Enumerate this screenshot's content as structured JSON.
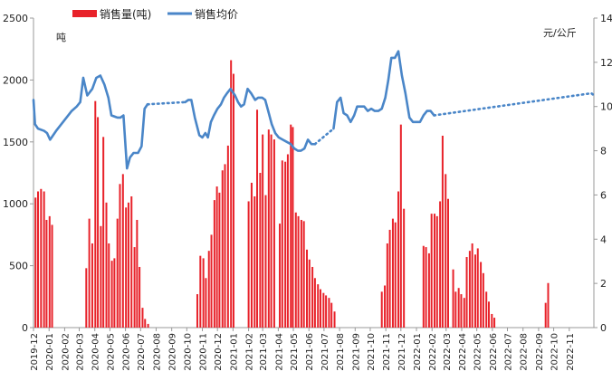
{
  "chart_data": {
    "type": "bar",
    "y_left_unit": "吨",
    "y_right_unit": "元/公斤",
    "ylim_left": [
      0,
      2500
    ],
    "ylim_right": [
      0,
      14
    ],
    "left_ticks": [
      0,
      500,
      1000,
      1500,
      2000,
      2500
    ],
    "right_ticks": [
      0,
      2,
      4,
      6,
      8,
      10,
      12,
      14
    ],
    "legend": {
      "position": "top-left",
      "bar_label": "销售量(吨)",
      "line_label": "销售均价"
    },
    "colors": {
      "bar": "#e8222a",
      "line": "#4a86c8"
    },
    "x_ticks": [
      "2019-12",
      "2020-01",
      "2020-02",
      "2020-03",
      "2020-04",
      "2020-05",
      "2020-06",
      "2020-07",
      "2020-08",
      "2020-09",
      "2020-10",
      "2020-11",
      "2020-12",
      "2021-01",
      "2021-02",
      "2021-03",
      "2021-04",
      "2021-05",
      "2021-06",
      "2021-07",
      "2021-08",
      "2021-09",
      "2021-10",
      "2021-11",
      "2021-12",
      "2022-01",
      "2022-02",
      "2022-03",
      "2022-04",
      "2022-05",
      "2022-06",
      "2022-07",
      "2022-08",
      "2022-09",
      "2022-10",
      "2022-11"
    ],
    "x_range": [
      "2019-12-01",
      "2022-12-20"
    ],
    "bars": [
      [
        "2019-12-05",
        1050
      ],
      [
        "2019-12-10",
        1100
      ],
      [
        "2019-12-16",
        1120
      ],
      [
        "2019-12-22",
        1100
      ],
      [
        "2019-12-27",
        870
      ],
      [
        "2020-01-02",
        900
      ],
      [
        "2020-01-07",
        830
      ],
      [
        "2020-03-15",
        480
      ],
      [
        "2020-03-21",
        880
      ],
      [
        "2020-03-27",
        680
      ],
      [
        "2020-04-02",
        1830
      ],
      [
        "2020-04-07",
        1700
      ],
      [
        "2020-04-13",
        820
      ],
      [
        "2020-04-18",
        1540
      ],
      [
        "2020-04-24",
        1010
      ],
      [
        "2020-04-29",
        680
      ],
      [
        "2020-05-05",
        540
      ],
      [
        "2020-05-10",
        560
      ],
      [
        "2020-05-16",
        880
      ],
      [
        "2020-05-21",
        1160
      ],
      [
        "2020-05-27",
        1240
      ],
      [
        "2020-06-02",
        970
      ],
      [
        "2020-06-07",
        1010
      ],
      [
        "2020-06-13",
        1060
      ],
      [
        "2020-06-19",
        650
      ],
      [
        "2020-06-24",
        870
      ],
      [
        "2020-06-29",
        490
      ],
      [
        "2020-07-05",
        160
      ],
      [
        "2020-07-10",
        70
      ],
      [
        "2020-07-16",
        30
      ],
      [
        "2020-10-22",
        270
      ],
      [
        "2020-10-28",
        580
      ],
      [
        "2020-11-03",
        560
      ],
      [
        "2020-11-08",
        400
      ],
      [
        "2020-11-14",
        620
      ],
      [
        "2020-11-19",
        750
      ],
      [
        "2020-11-25",
        1030
      ],
      [
        "2020-11-30",
        1140
      ],
      [
        "2020-12-05",
        1090
      ],
      [
        "2020-12-11",
        1270
      ],
      [
        "2020-12-16",
        1320
      ],
      [
        "2020-12-22",
        1470
      ],
      [
        "2020-12-28",
        2160
      ],
      [
        "2021-01-02",
        2050
      ],
      [
        "2021-02-01",
        1020
      ],
      [
        "2021-02-07",
        1170
      ],
      [
        "2021-02-13",
        1060
      ],
      [
        "2021-02-18",
        1760
      ],
      [
        "2021-02-24",
        1250
      ],
      [
        "2021-03-01",
        1560
      ],
      [
        "2021-03-07",
        1070
      ],
      [
        "2021-03-13",
        1600
      ],
      [
        "2021-03-18",
        1560
      ],
      [
        "2021-03-24",
        1520
      ],
      [
        "2021-04-04",
        840
      ],
      [
        "2021-04-09",
        1350
      ],
      [
        "2021-04-15",
        1340
      ],
      [
        "2021-04-20",
        1400
      ],
      [
        "2021-04-26",
        1640
      ],
      [
        "2021-04-30",
        1620
      ],
      [
        "2021-05-06",
        930
      ],
      [
        "2021-05-11",
        900
      ],
      [
        "2021-05-17",
        870
      ],
      [
        "2021-05-22",
        860
      ],
      [
        "2021-05-28",
        630
      ],
      [
        "2021-06-02",
        550
      ],
      [
        "2021-06-08",
        490
      ],
      [
        "2021-06-13",
        400
      ],
      [
        "2021-06-19",
        350
      ],
      [
        "2021-06-24",
        310
      ],
      [
        "2021-06-30",
        280
      ],
      [
        "2021-07-05",
        260
      ],
      [
        "2021-07-11",
        240
      ],
      [
        "2021-07-16",
        200
      ],
      [
        "2021-07-22",
        130
      ],
      [
        "2021-10-24",
        290
      ],
      [
        "2021-10-30",
        340
      ],
      [
        "2021-11-04",
        680
      ],
      [
        "2021-11-09",
        790
      ],
      [
        "2021-11-15",
        880
      ],
      [
        "2021-11-20",
        850
      ],
      [
        "2021-11-26",
        1100
      ],
      [
        "2021-12-01",
        1640
      ],
      [
        "2021-12-07",
        960
      ],
      [
        "2022-01-15",
        660
      ],
      [
        "2022-01-20",
        650
      ],
      [
        "2022-01-26",
        600
      ],
      [
        "2022-01-31",
        920
      ],
      [
        "2022-02-06",
        920
      ],
      [
        "2022-02-11",
        900
      ],
      [
        "2022-02-17",
        1020
      ],
      [
        "2022-02-22",
        1550
      ],
      [
        "2022-02-28",
        1240
      ],
      [
        "2022-03-05",
        1040
      ],
      [
        "2022-03-15",
        470
      ],
      [
        "2022-03-20",
        290
      ],
      [
        "2022-03-26",
        320
      ],
      [
        "2022-03-31",
        270
      ],
      [
        "2022-04-06",
        240
      ],
      [
        "2022-04-11",
        570
      ],
      [
        "2022-04-17",
        620
      ],
      [
        "2022-04-22",
        680
      ],
      [
        "2022-04-28",
        590
      ],
      [
        "2022-05-03",
        640
      ],
      [
        "2022-05-09",
        530
      ],
      [
        "2022-05-14",
        440
      ],
      [
        "2022-05-20",
        290
      ],
      [
        "2022-05-25",
        210
      ],
      [
        "2022-05-31",
        110
      ],
      [
        "2022-06-05",
        80
      ],
      [
        "2022-09-15",
        200
      ],
      [
        "2022-09-20",
        360
      ]
    ],
    "price_solid": [
      [
        [
          "2019-12-01",
          10.3
        ],
        [
          "2019-12-04",
          9.2
        ],
        [
          "2019-12-10",
          9.0
        ],
        [
          "2019-12-22",
          8.9
        ],
        [
          "2019-12-28",
          8.8
        ],
        [
          "2020-01-03",
          8.5
        ],
        [
          "2020-01-15",
          8.9
        ],
        [
          "2020-02-15",
          9.8
        ],
        [
          "2020-02-25",
          10.0
        ],
        [
          "2020-03-03",
          10.2
        ],
        [
          "2020-03-09",
          11.3
        ],
        [
          "2020-03-17",
          10.5
        ],
        [
          "2020-03-27",
          10.8
        ],
        [
          "2020-04-04",
          11.3
        ],
        [
          "2020-04-12",
          11.4
        ],
        [
          "2020-04-20",
          11.0
        ],
        [
          "2020-04-28",
          10.4
        ],
        [
          "2020-05-04",
          9.6
        ],
        [
          "2020-05-16",
          9.5
        ],
        [
          "2020-05-22",
          9.5
        ],
        [
          "2020-05-28",
          9.6
        ],
        [
          "2020-06-04",
          7.2
        ],
        [
          "2020-06-10",
          7.7
        ],
        [
          "2020-06-17",
          7.9
        ],
        [
          "2020-06-26",
          7.9
        ],
        [
          "2020-07-03",
          8.2
        ],
        [
          "2020-07-09",
          9.9
        ],
        [
          "2020-07-15",
          10.1
        ]
      ],
      [
        [
          "2020-09-28",
          10.2
        ],
        [
          "2020-10-04",
          10.3
        ],
        [
          "2020-10-10",
          10.3
        ],
        [
          "2020-10-17",
          9.5
        ],
        [
          "2020-10-26",
          8.7
        ],
        [
          "2020-11-01",
          8.6
        ],
        [
          "2020-11-07",
          8.8
        ],
        [
          "2020-11-12",
          8.6
        ],
        [
          "2020-11-18",
          9.3
        ],
        [
          "2020-11-24",
          9.6
        ],
        [
          "2020-12-01",
          9.9
        ],
        [
          "2020-12-08",
          10.1
        ],
        [
          "2020-12-14",
          10.4
        ],
        [
          "2020-12-20",
          10.6
        ],
        [
          "2020-12-27",
          10.8
        ],
        [
          "2021-01-05",
          10.5
        ],
        [
          "2021-01-11",
          10.2
        ],
        [
          "2021-01-17",
          10.0
        ],
        [
          "2021-01-23",
          10.1
        ],
        [
          "2021-01-30",
          10.8
        ],
        [
          "2021-02-06",
          10.6
        ],
        [
          "2021-02-14",
          10.3
        ],
        [
          "2021-02-20",
          10.4
        ],
        [
          "2021-02-28",
          10.4
        ],
        [
          "2021-03-06",
          10.3
        ],
        [
          "2021-03-12",
          9.8
        ],
        [
          "2021-03-19",
          9.2
        ],
        [
          "2021-03-26",
          8.8
        ],
        [
          "2021-04-02",
          8.6
        ],
        [
          "2021-04-10",
          8.5
        ],
        [
          "2021-04-18",
          8.4
        ],
        [
          "2021-04-26",
          8.3
        ],
        [
          "2021-05-03",
          8.1
        ],
        [
          "2021-05-10",
          8.0
        ],
        [
          "2021-05-16",
          8.0
        ],
        [
          "2021-05-23",
          8.1
        ],
        [
          "2021-05-30",
          8.5
        ],
        [
          "2021-06-06",
          8.3
        ],
        [
          "2021-06-13",
          8.3
        ]
      ],
      [
        [
          "2021-07-20",
          9.0
        ],
        [
          "2021-07-27",
          10.2
        ],
        [
          "2021-08-03",
          10.4
        ],
        [
          "2021-08-09",
          9.7
        ],
        [
          "2021-08-16",
          9.6
        ],
        [
          "2021-08-23",
          9.3
        ],
        [
          "2021-08-30",
          9.6
        ],
        [
          "2021-09-05",
          10.0
        ],
        [
          "2021-09-12",
          10.0
        ],
        [
          "2021-09-19",
          10.0
        ],
        [
          "2021-09-26",
          9.8
        ],
        [
          "2021-10-03",
          9.9
        ],
        [
          "2021-10-10",
          9.8
        ],
        [
          "2021-10-17",
          9.8
        ],
        [
          "2021-10-24",
          9.9
        ],
        [
          "2021-10-31",
          10.4
        ],
        [
          "2021-11-06",
          11.2
        ],
        [
          "2021-11-12",
          12.2
        ],
        [
          "2021-11-19",
          12.2
        ],
        [
          "2021-11-26",
          12.5
        ],
        [
          "2021-12-03",
          11.4
        ],
        [
          "2021-12-10",
          10.6
        ],
        [
          "2021-12-18",
          9.5
        ],
        [
          "2021-12-25",
          9.3
        ],
        [
          "2022-01-01",
          9.3
        ],
        [
          "2022-01-08",
          9.3
        ],
        [
          "2022-01-15",
          9.6
        ],
        [
          "2022-01-22",
          9.8
        ],
        [
          "2022-01-29",
          9.8
        ],
        [
          "2022-02-05",
          9.6
        ]
      ]
    ],
    "price_dotted": [
      [
        [
          "2020-07-15",
          10.1
        ],
        [
          "2020-09-28",
          10.2
        ]
      ],
      [
        [
          "2021-06-13",
          8.3
        ],
        [
          "2021-07-20",
          9.0
        ]
      ],
      [
        [
          "2022-02-05",
          9.6
        ],
        [
          "2022-12-15",
          10.6
        ],
        [
          "2022-12-20",
          10.5
        ]
      ]
    ]
  }
}
